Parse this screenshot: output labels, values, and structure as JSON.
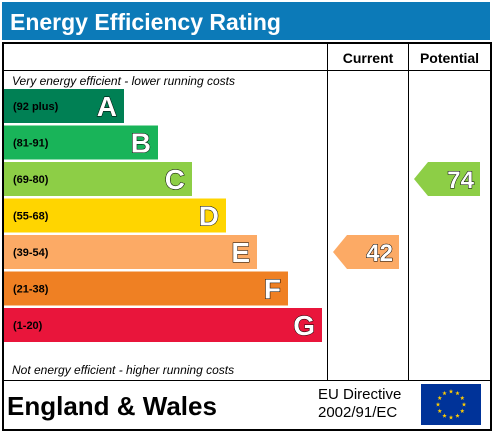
{
  "title": "Energy Efficiency Rating",
  "columns": {
    "current": "Current",
    "potential": "Potential"
  },
  "top_note": "Very energy efficient - lower running costs",
  "bottom_note": "Not energy efficient - higher running costs",
  "footer": {
    "region": "England & Wales",
    "directive_line1": "EU Directive",
    "directive_line2": "2002/91/EC",
    "flag_icon": "eu-flag-icon"
  },
  "chart_data": {
    "type": "bar",
    "title": "Energy Efficiency Rating",
    "categories": [
      "A",
      "B",
      "C",
      "D",
      "E",
      "F",
      "G"
    ],
    "bands": [
      {
        "letter": "A",
        "range": "(92 plus)",
        "color": "#008054"
      },
      {
        "letter": "B",
        "range": "(81-91)",
        "color": "#19b459"
      },
      {
        "letter": "C",
        "range": "(69-80)",
        "color": "#8dce46"
      },
      {
        "letter": "D",
        "range": "(55-68)",
        "color": "#ffd500"
      },
      {
        "letter": "E",
        "range": "(39-54)",
        "color": "#fcaa65"
      },
      {
        "letter": "F",
        "range": "(21-38)",
        "color": "#ef8023"
      },
      {
        "letter": "G",
        "range": "(1-20)",
        "color": "#e9153b"
      }
    ],
    "series": [
      {
        "name": "Current",
        "value": 42,
        "band": "E",
        "color": "#fcaa65"
      },
      {
        "name": "Potential",
        "value": 74,
        "band": "C",
        "color": "#8dce46"
      }
    ]
  }
}
